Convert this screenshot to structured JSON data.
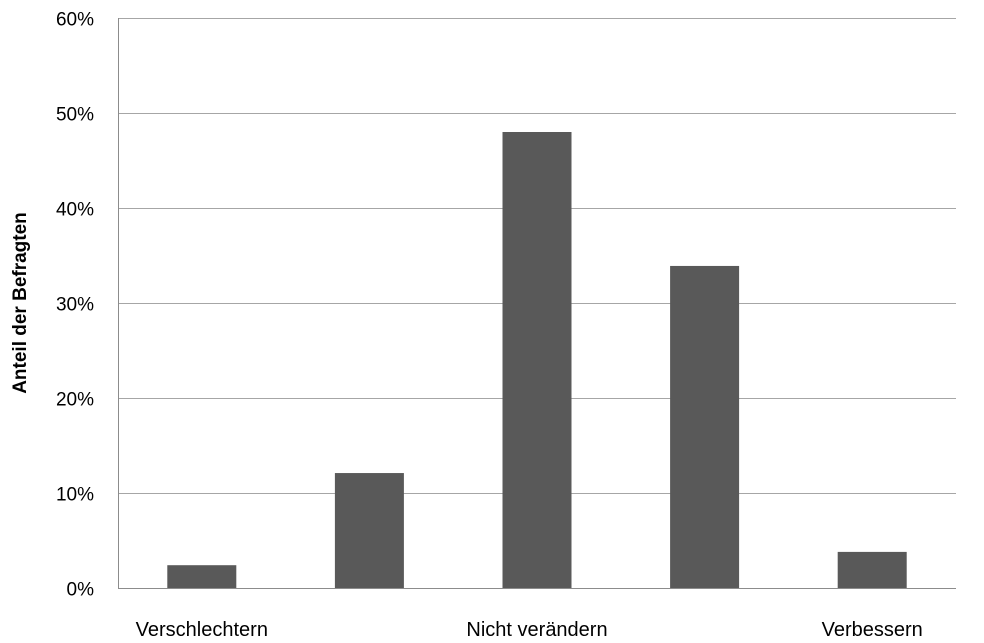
{
  "chart_data": {
    "type": "bar",
    "title": "",
    "xlabel": "",
    "ylabel": "Anteil der Befragten",
    "ylim": [
      0,
      60
    ],
    "yticks": [
      0,
      10,
      20,
      30,
      40,
      50,
      60
    ],
    "ytick_labels": [
      "0%",
      "10%",
      "20%",
      "30%",
      "40%",
      "50%",
      "60%"
    ],
    "categories": [
      "Verschlechtern",
      "",
      "Nicht verändern",
      "",
      "Verbessern"
    ],
    "values": [
      2.4,
      12.1,
      48.0,
      33.9,
      3.8
    ],
    "grid": true,
    "legend": "none",
    "bar_color": "#595959",
    "grid_color": "#a6a6a6"
  }
}
